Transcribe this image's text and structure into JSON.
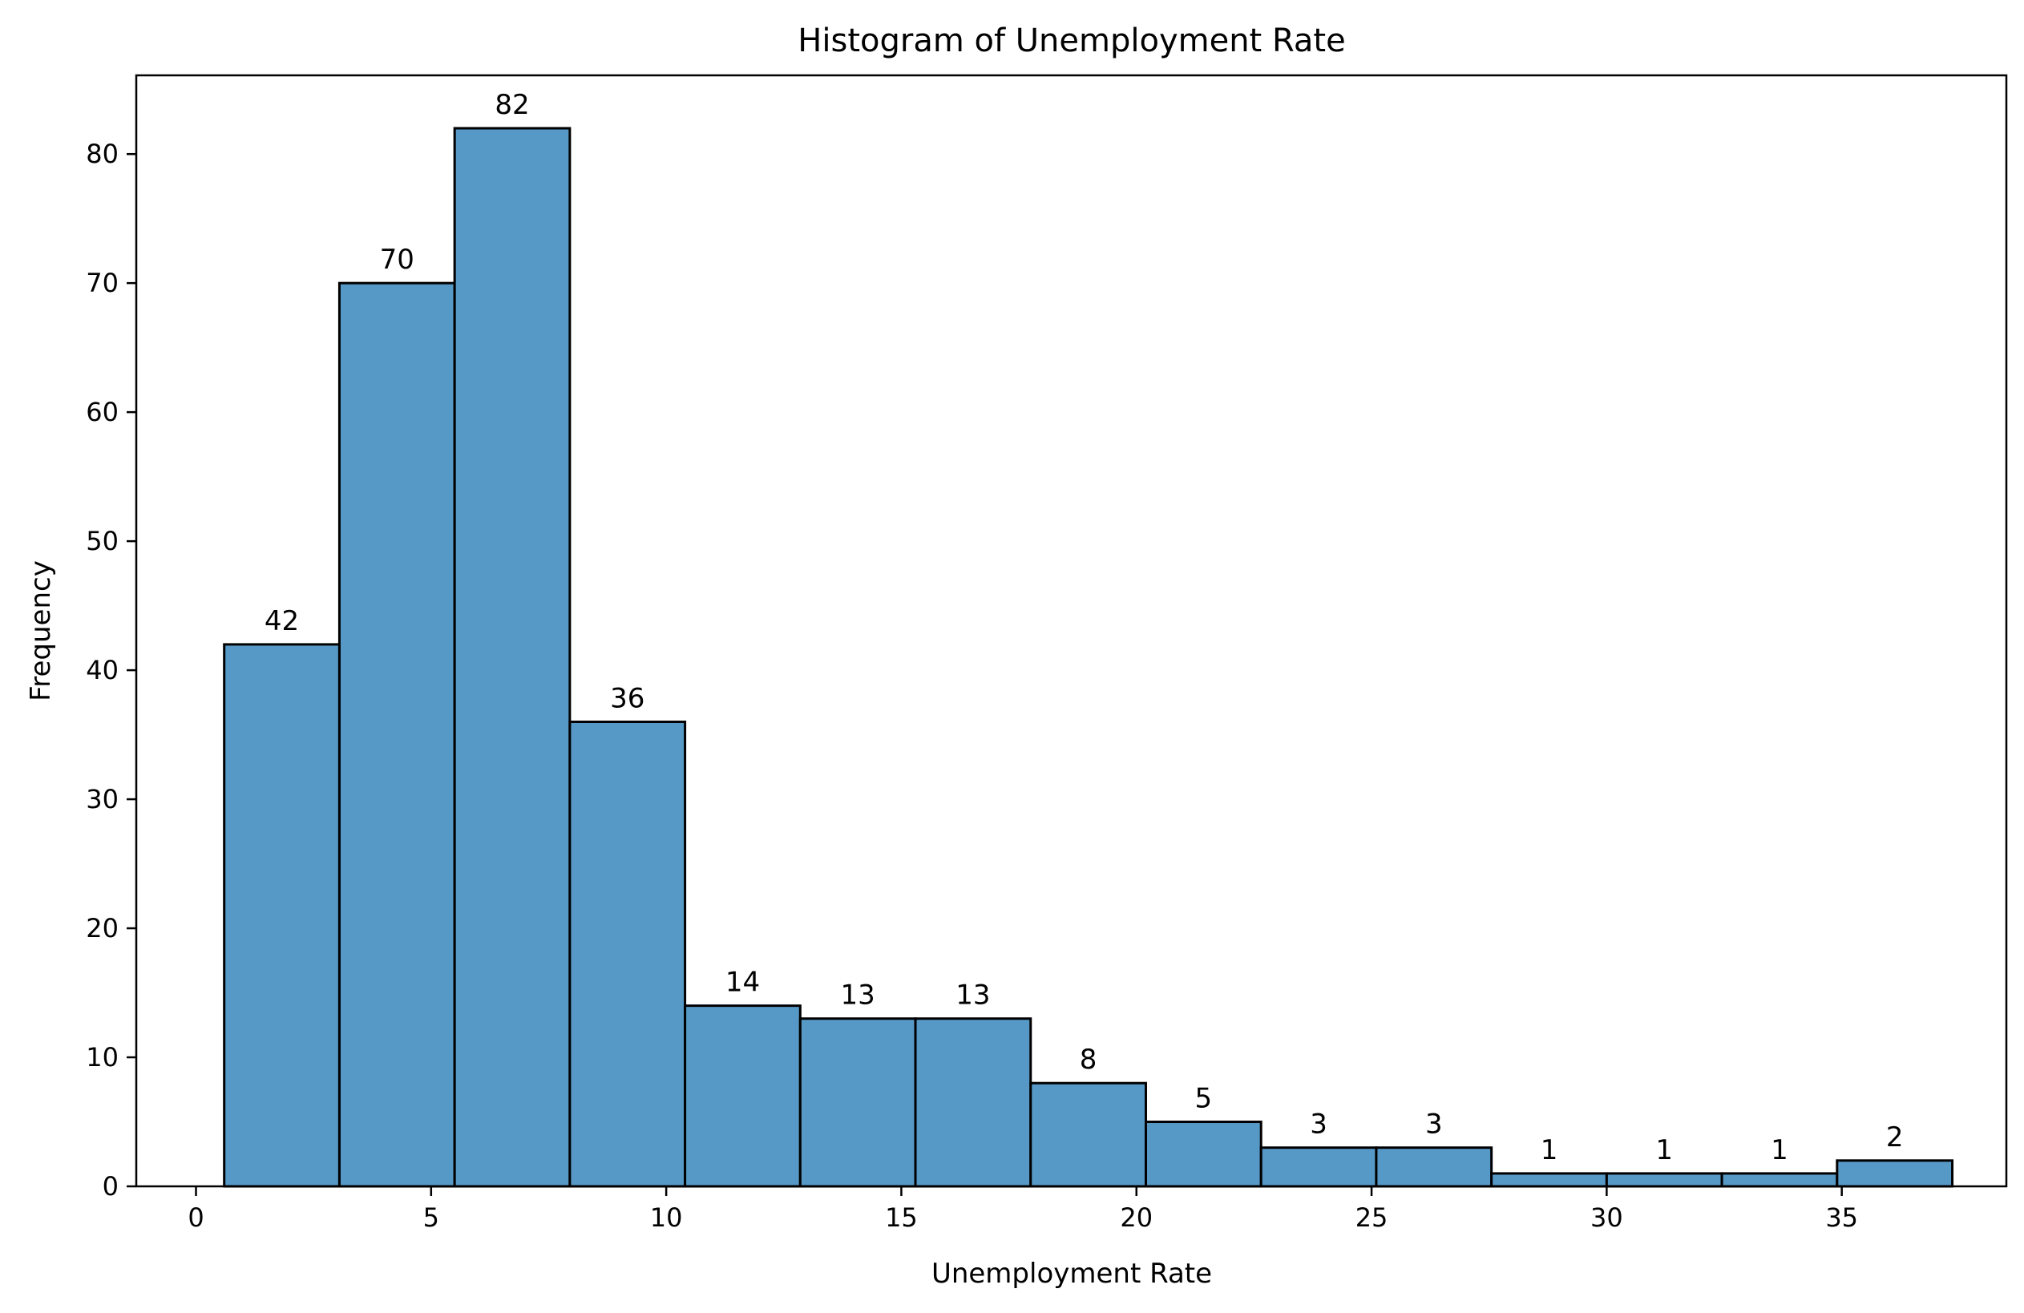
{
  "chart_data": {
    "type": "bar",
    "title": "Histogram of Unemployment Rate",
    "xlabel": "Unemployment Rate",
    "ylabel": "Frequency",
    "bin_edges": [
      0.6,
      3.05,
      5.5,
      7.95,
      10.4,
      12.85,
      15.3,
      17.75,
      20.2,
      22.65,
      25.1,
      27.55,
      30.0,
      32.45,
      34.9,
      37.35
    ],
    "values": [
      42,
      70,
      82,
      36,
      14,
      13,
      13,
      8,
      5,
      3,
      3,
      1,
      1,
      1,
      2
    ],
    "xlim": [
      -1.27,
      38.5
    ],
    "ylim": [
      0,
      86.1
    ],
    "xticks": [
      0,
      5,
      10,
      15,
      20,
      25,
      30,
      35
    ],
    "yticks": [
      0,
      10,
      20,
      30,
      40,
      50,
      60,
      70,
      80
    ],
    "grid": false,
    "bar_color": "#5799c6",
    "edge_color": "#000000"
  }
}
